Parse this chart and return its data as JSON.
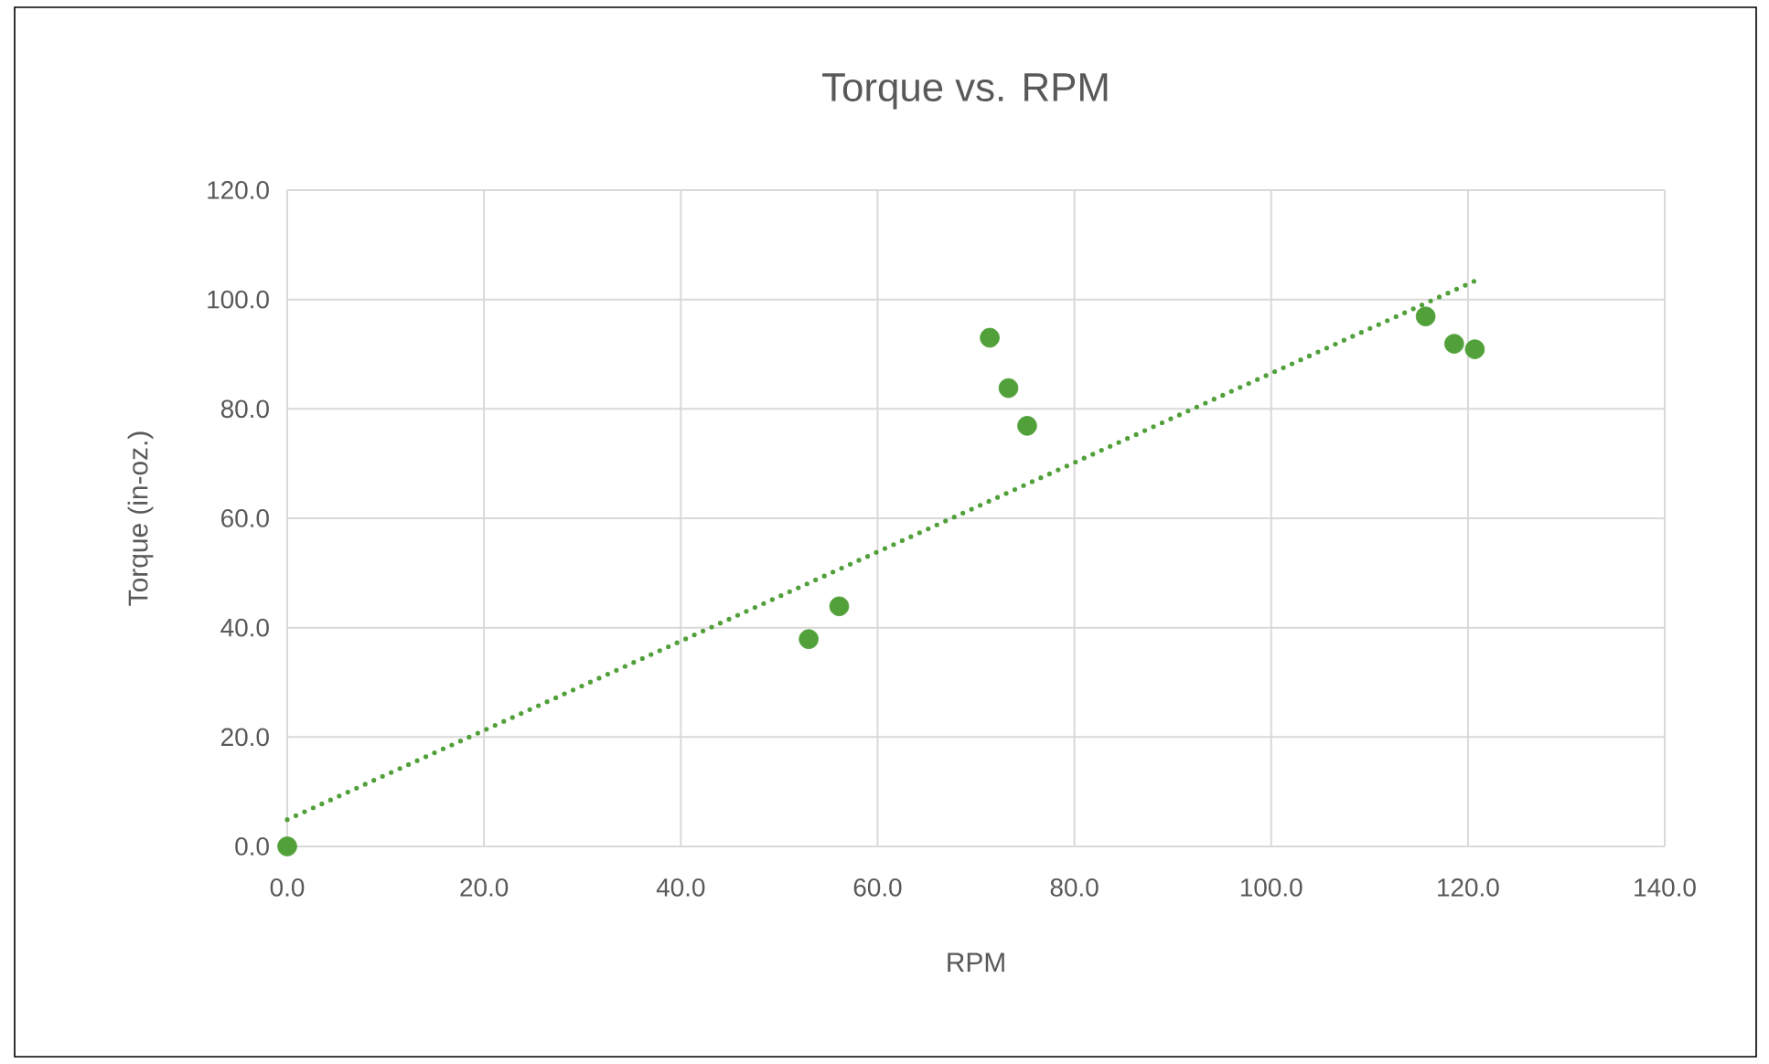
{
  "chart_data": {
    "type": "scatter",
    "title": "Torque vs. RPM",
    "xlabel": "RPM",
    "ylabel": "Torque (in-oz.)",
    "xlim": [
      0,
      140
    ],
    "ylim": [
      0,
      120
    ],
    "xticks": [
      {
        "value": 0,
        "label": "0.0"
      },
      {
        "value": 20,
        "label": "20.0"
      },
      {
        "value": 40,
        "label": "40.0"
      },
      {
        "value": 60,
        "label": "60.0"
      },
      {
        "value": 80,
        "label": "80.0"
      },
      {
        "value": 100,
        "label": "100.0"
      },
      {
        "value": 120,
        "label": "120.0"
      },
      {
        "value": 140,
        "label": "140.0"
      }
    ],
    "yticks": [
      {
        "value": 0,
        "label": "0.0"
      },
      {
        "value": 20,
        "label": "20.0"
      },
      {
        "value": 40,
        "label": "40.0"
      },
      {
        "value": 60,
        "label": "60.0"
      },
      {
        "value": 80,
        "label": "80.0"
      },
      {
        "value": 100,
        "label": "100.0"
      },
      {
        "value": 120,
        "label": "120.0"
      }
    ],
    "grid": true,
    "series": [
      {
        "color": "#51a03a",
        "marker": "circle",
        "x": [
          0,
          53.0,
          56.1,
          71.4,
          73.3,
          75.2,
          115.7,
          118.6,
          120.7
        ],
        "values": [
          0,
          37.9,
          43.9,
          93.0,
          83.8,
          76.9,
          96.9,
          91.9,
          90.9
        ]
      },
      {
        "type": "line",
        "color": "#51a03a",
        "marker": "none",
        "line_style": "dotted",
        "x": [
          0,
          120.7
        ],
        "values": [
          4.9,
          103.4
        ]
      }
    ]
  }
}
